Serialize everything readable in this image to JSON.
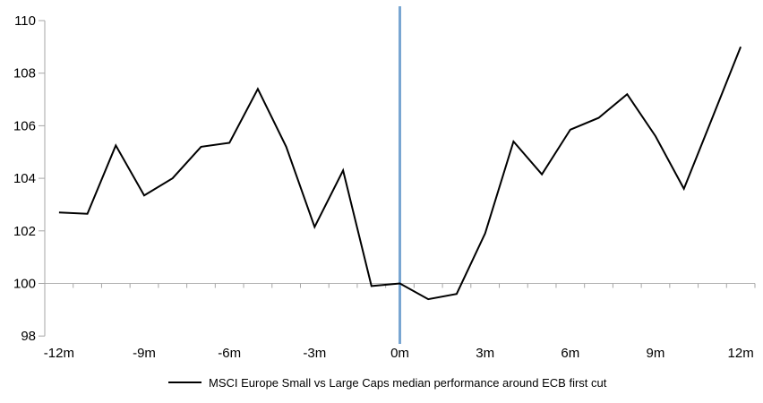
{
  "chart_data": {
    "type": "line",
    "x": [
      -12,
      -11,
      -10,
      -9,
      -8,
      -7,
      -6,
      -5,
      -4,
      -3,
      -2,
      -1,
      0,
      1,
      2,
      3,
      4,
      5,
      6,
      7,
      8,
      9,
      10,
      11,
      12
    ],
    "series": [
      {
        "name": "MSCI Europe Small vs Large Caps median performance around ECB first cut",
        "color": "#000000",
        "values": [
          102.7,
          102.65,
          105.25,
          103.35,
          104.0,
          105.2,
          105.35,
          107.4,
          105.2,
          102.15,
          104.3,
          99.9,
          100.0,
          99.4,
          99.6,
          101.9,
          105.4,
          104.15,
          105.85,
          106.3,
          107.2,
          105.6,
          103.6,
          106.3,
          109.0
        ]
      }
    ],
    "ylim": [
      98,
      110
    ],
    "y_ticks": [
      "98",
      "100",
      "102",
      "104",
      "106",
      "108",
      "110"
    ],
    "x_ticks": [
      {
        "value": -12,
        "label": "-12m"
      },
      {
        "value": -9,
        "label": "-9m"
      },
      {
        "value": -6,
        "label": "-6m"
      },
      {
        "value": -3,
        "label": "-3m"
      },
      {
        "value": 0,
        "label": "0m"
      },
      {
        "value": 3,
        "label": "3m"
      },
      {
        "value": 6,
        "label": "6m"
      },
      {
        "value": 9,
        "label": "9m"
      },
      {
        "value": 12,
        "label": "12m"
      }
    ],
    "x_minor_tick_every_month": true,
    "axis_cross_y": 100,
    "event_line_x": 0,
    "grid": false,
    "legend_position": "bottom-center",
    "colors": {
      "series": "#000000",
      "event_line": "#79A6D2",
      "axis": "#A6A6A6",
      "baseline": "#B3B3B3",
      "text": "#000000"
    }
  },
  "legend": {
    "label": "MSCI Europe Small vs Large Caps median performance around ECB first cut"
  }
}
